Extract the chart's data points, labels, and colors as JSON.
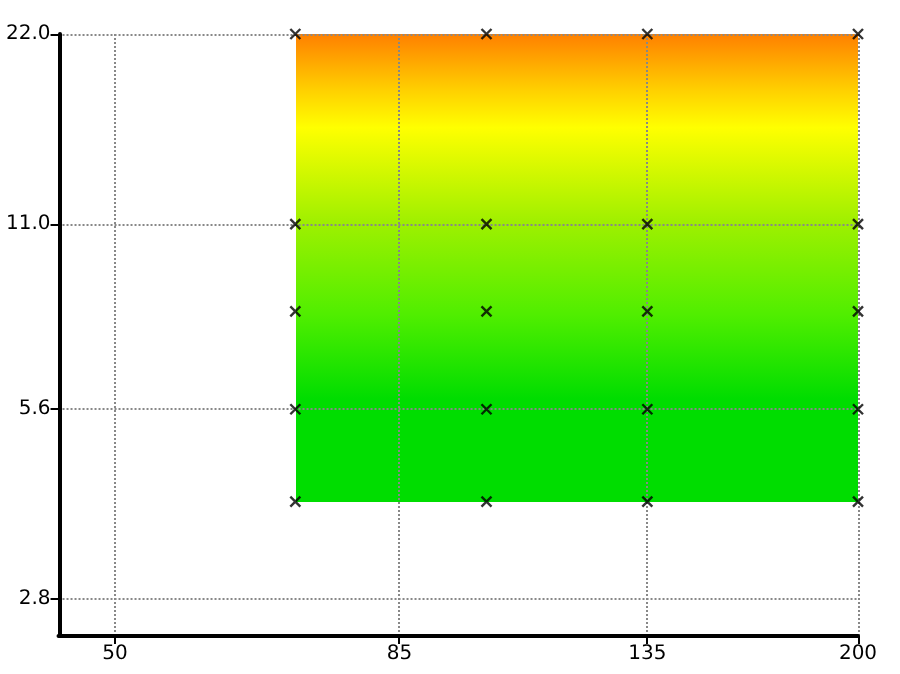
{
  "chart_data": {
    "type": "scatter",
    "x": [
      70,
      70,
      70,
      70,
      70,
      100,
      100,
      100,
      100,
      100,
      135,
      135,
      135,
      135,
      135,
      200,
      200,
      200,
      200,
      200
    ],
    "series": [
      {
        "color": "#000000",
        "values": [
          4,
          5.6,
          8,
          11,
          22,
          4,
          5.6,
          8,
          11,
          22,
          4,
          5.6,
          8,
          11,
          22,
          4,
          5.6,
          8,
          11,
          22
        ]
      }
    ],
    "marker": "cross",
    "log": "xy",
    "grid": true,
    "xlim": [
      45,
      200
    ],
    "xticks": [
      50,
      85,
      135,
      200
    ],
    "ylim": [
      2.45,
      22
    ],
    "yticks": [
      {
        "value": 2.8,
        "label": "2.8"
      },
      {
        "value": 5.6,
        "label": "5.6"
      },
      {
        "value": 11,
        "label": "11.0"
      },
      {
        "value": 22,
        "label": "22.0"
      }
    ]
  }
}
